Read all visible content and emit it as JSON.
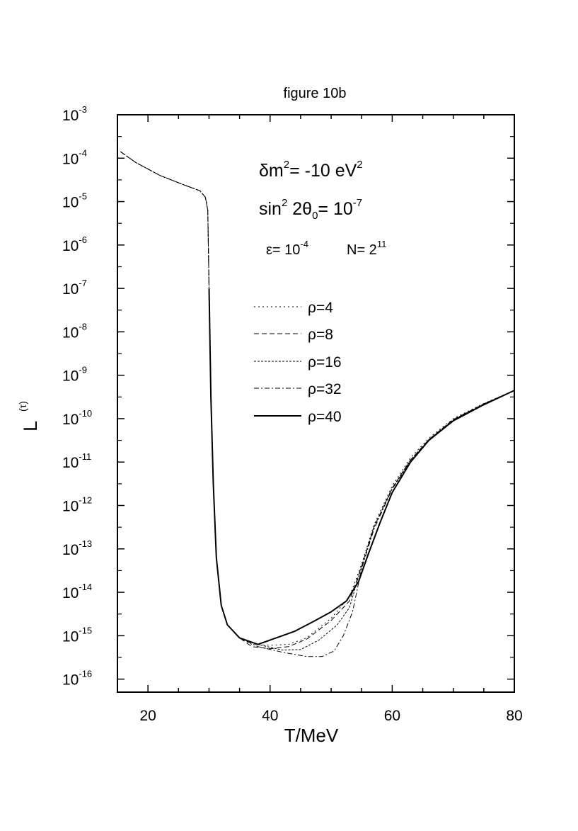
{
  "chart_data": {
    "type": "line",
    "title": "figure 10b",
    "xlabel": "T/MeV",
    "ylabel": "L",
    "ylabel_sup": "(τ)",
    "xlim": [
      15,
      80
    ],
    "ylim_log10": [
      -16.3,
      -3
    ],
    "yscale": "log",
    "grid": false,
    "x_ticks": [
      20,
      40,
      60,
      80
    ],
    "y_ticks": [
      {
        "exp": -3,
        "base": "10",
        "sup": "-3"
      },
      {
        "exp": -4,
        "base": "10",
        "sup": "-4"
      },
      {
        "exp": -5,
        "base": "10",
        "sup": "-5"
      },
      {
        "exp": -6,
        "base": "10",
        "sup": "-6"
      },
      {
        "exp": -7,
        "base": "10",
        "sup": "-7"
      },
      {
        "exp": -8,
        "base": "10",
        "sup": "-8"
      },
      {
        "exp": -9,
        "base": "10",
        "sup": "-9"
      },
      {
        "exp": -10,
        "base": "10",
        "sup": "-10"
      },
      {
        "exp": -11,
        "base": "10",
        "sup": "-11"
      },
      {
        "exp": -12,
        "base": "10",
        "sup": "-12"
      },
      {
        "exp": -13,
        "base": "10",
        "sup": "-13"
      },
      {
        "exp": -14,
        "base": "10",
        "sup": "-14"
      },
      {
        "exp": -15,
        "base": "10",
        "sup": "-15"
      },
      {
        "exp": -16,
        "base": "10",
        "sup": "-16"
      }
    ],
    "annotations": {
      "line1": {
        "a": "δm",
        "b": "2",
        "c": "= -10 eV",
        "d": "2"
      },
      "line2": {
        "a": "sin",
        "b": "2",
        "c": " 2θ",
        "d": "0",
        "e": "= 10",
        "f": "-7"
      },
      "line3": {
        "a": "ε= 10",
        "b": "-4",
        "c": "N= 2",
        "d": "11"
      }
    },
    "legend_placement": "center",
    "series": [
      {
        "name": "ρ=4",
        "dash": "2,4",
        "width": 1,
        "points": [
          [
            15.5,
            -3.85
          ],
          [
            18,
            -4.1
          ],
          [
            22,
            -4.4
          ],
          [
            26,
            -4.62
          ],
          [
            28.5,
            -4.75
          ],
          [
            29.4,
            -4.9
          ],
          [
            29.8,
            -5.2
          ],
          [
            30.0,
            -7.0
          ],
          [
            30.3,
            -9.5
          ],
          [
            30.7,
            -11.5
          ],
          [
            31.2,
            -13.2
          ],
          [
            32,
            -14.3
          ],
          [
            33,
            -14.75
          ],
          [
            35,
            -15.05
          ],
          [
            37,
            -15.2
          ],
          [
            40,
            -15.22
          ],
          [
            43,
            -15.2
          ],
          [
            46,
            -15.05
          ],
          [
            50,
            -14.6
          ],
          [
            53,
            -14.1
          ],
          [
            55,
            -13.35
          ],
          [
            57,
            -12.45
          ],
          [
            60,
            -11.55
          ],
          [
            63,
            -10.9
          ],
          [
            66,
            -10.45
          ],
          [
            70,
            -10.0
          ],
          [
            75,
            -9.65
          ],
          [
            80,
            -9.35
          ]
        ]
      },
      {
        "name": "ρ=8",
        "dash": "7,4",
        "width": 1,
        "points": [
          [
            15.5,
            -3.85
          ],
          [
            18,
            -4.1
          ],
          [
            22,
            -4.4
          ],
          [
            26,
            -4.62
          ],
          [
            28.5,
            -4.75
          ],
          [
            29.4,
            -4.9
          ],
          [
            29.8,
            -5.2
          ],
          [
            30.0,
            -7.0
          ],
          [
            30.3,
            -9.5
          ],
          [
            30.7,
            -11.5
          ],
          [
            31.2,
            -13.2
          ],
          [
            32,
            -14.3
          ],
          [
            33,
            -14.75
          ],
          [
            35,
            -15.05
          ],
          [
            37,
            -15.25
          ],
          [
            40,
            -15.3
          ],
          [
            43,
            -15.25
          ],
          [
            46,
            -15.08
          ],
          [
            50,
            -14.65
          ],
          [
            53,
            -14.2
          ],
          [
            55,
            -13.4
          ],
          [
            57,
            -12.5
          ],
          [
            60,
            -11.6
          ],
          [
            63,
            -10.95
          ],
          [
            66,
            -10.48
          ],
          [
            70,
            -10.02
          ],
          [
            75,
            -9.66
          ],
          [
            80,
            -9.35
          ]
        ]
      },
      {
        "name": "ρ=16",
        "dash": "3,2",
        "width": 1,
        "points": [
          [
            15.5,
            -3.85
          ],
          [
            18,
            -4.1
          ],
          [
            22,
            -4.4
          ],
          [
            26,
            -4.62
          ],
          [
            28.5,
            -4.75
          ],
          [
            29.4,
            -4.9
          ],
          [
            29.8,
            -5.2
          ],
          [
            30.0,
            -7.0
          ],
          [
            30.3,
            -9.5
          ],
          [
            30.7,
            -11.5
          ],
          [
            31.2,
            -13.2
          ],
          [
            32,
            -14.3
          ],
          [
            33,
            -14.75
          ],
          [
            35,
            -15.05
          ],
          [
            38,
            -15.2
          ],
          [
            42,
            -15.33
          ],
          [
            45,
            -15.32
          ],
          [
            48,
            -15.1
          ],
          [
            51,
            -14.75
          ],
          [
            53,
            -14.35
          ],
          [
            55,
            -13.4
          ],
          [
            57,
            -12.5
          ],
          [
            60,
            -11.6
          ],
          [
            63,
            -10.95
          ],
          [
            66,
            -10.48
          ],
          [
            70,
            -10.02
          ],
          [
            75,
            -9.66
          ],
          [
            80,
            -9.35
          ]
        ]
      },
      {
        "name": "ρ=32",
        "dash": "7,3,2,3",
        "width": 1,
        "points": [
          [
            15.5,
            -3.85
          ],
          [
            18,
            -4.1
          ],
          [
            22,
            -4.4
          ],
          [
            26,
            -4.62
          ],
          [
            28.5,
            -4.75
          ],
          [
            29.4,
            -4.9
          ],
          [
            29.8,
            -5.2
          ],
          [
            30.0,
            -7.0
          ],
          [
            30.3,
            -9.5
          ],
          [
            30.7,
            -11.5
          ],
          [
            31.2,
            -13.2
          ],
          [
            32,
            -14.3
          ],
          [
            33,
            -14.75
          ],
          [
            35,
            -15.05
          ],
          [
            38,
            -15.25
          ],
          [
            42,
            -15.38
          ],
          [
            46,
            -15.48
          ],
          [
            48.5,
            -15.48
          ],
          [
            50.5,
            -15.35
          ],
          [
            52,
            -15.0
          ],
          [
            53.5,
            -14.45
          ],
          [
            55,
            -13.45
          ],
          [
            57,
            -12.55
          ],
          [
            60,
            -11.62
          ],
          [
            63,
            -10.98
          ],
          [
            66,
            -10.5
          ],
          [
            70,
            -10.04
          ],
          [
            75,
            -9.67
          ],
          [
            80,
            -9.35
          ]
        ]
      },
      {
        "name": "ρ=40",
        "dash": "",
        "width": 2,
        "points": [
          [
            30.0,
            -7.0
          ],
          [
            30.3,
            -9.5
          ],
          [
            30.7,
            -11.5
          ],
          [
            31.2,
            -13.2
          ],
          [
            32,
            -14.3
          ],
          [
            33,
            -14.75
          ],
          [
            35,
            -15.05
          ],
          [
            38,
            -15.2
          ],
          [
            41,
            -15.05
          ],
          [
            44,
            -14.9
          ],
          [
            47,
            -14.68
          ],
          [
            50,
            -14.45
          ],
          [
            52.5,
            -14.2
          ],
          [
            54.5,
            -13.75
          ],
          [
            56,
            -13.15
          ],
          [
            58,
            -12.4
          ],
          [
            60,
            -11.7
          ],
          [
            63,
            -11.0
          ],
          [
            66,
            -10.5
          ],
          [
            70,
            -10.05
          ],
          [
            75,
            -9.68
          ],
          [
            80,
            -9.35
          ]
        ]
      }
    ]
  }
}
